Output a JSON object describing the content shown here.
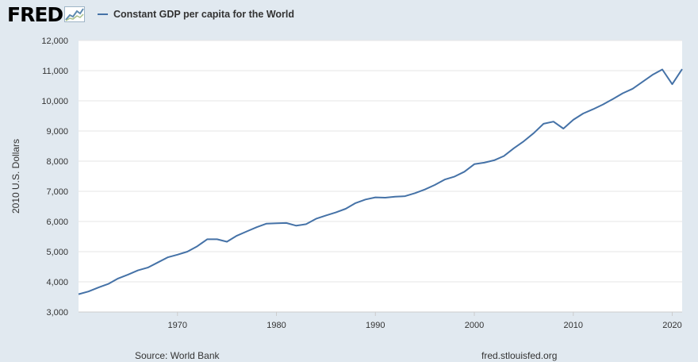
{
  "brand": {
    "logo_text": "FRED",
    "logo_icon": "trend-line-icon",
    "accent": "#4572a7"
  },
  "legend": {
    "label": "Constant GDP per capita for the World"
  },
  "footer": {
    "source": "Source: World Bank",
    "site": "fred.stlouisfed.org"
  },
  "chart_data": {
    "type": "line",
    "title": "",
    "xlabel": "",
    "ylabel": "2010 U.S. Dollars",
    "xlim": [
      1960,
      2021
    ],
    "ylim": [
      3000,
      12000
    ],
    "yticks": [
      3000,
      4000,
      5000,
      6000,
      7000,
      8000,
      9000,
      10000,
      11000,
      12000
    ],
    "ytick_labels": [
      "3,000",
      "4,000",
      "5,000",
      "6,000",
      "7,000",
      "8,000",
      "9,000",
      "10,000",
      "11,000",
      "12,000"
    ],
    "xticks": [
      1970,
      1980,
      1990,
      2000,
      2010,
      2020
    ],
    "xtick_labels": [
      "1970",
      "1980",
      "1990",
      "2000",
      "2010",
      "2020"
    ],
    "grid": true,
    "legend_position": "top",
    "series": [
      {
        "name": "Constant GDP per capita for the World",
        "color": "#4572a7",
        "x": [
          1960,
          1961,
          1962,
          1963,
          1964,
          1965,
          1966,
          1967,
          1968,
          1969,
          1970,
          1971,
          1972,
          1973,
          1974,
          1975,
          1976,
          1977,
          1978,
          1979,
          1980,
          1981,
          1982,
          1983,
          1984,
          1985,
          1986,
          1987,
          1988,
          1989,
          1990,
          1991,
          1992,
          1993,
          1994,
          1995,
          1996,
          1997,
          1998,
          1999,
          2000,
          2001,
          2002,
          2003,
          2004,
          2005,
          2006,
          2007,
          2008,
          2009,
          2010,
          2011,
          2012,
          2013,
          2014,
          2015,
          2016,
          2017,
          2018,
          2019,
          2020,
          2021
        ],
        "values": [
          3590,
          3680,
          3810,
          3930,
          4110,
          4240,
          4380,
          4470,
          4640,
          4810,
          4900,
          5000,
          5180,
          5410,
          5410,
          5330,
          5530,
          5670,
          5810,
          5930,
          5940,
          5950,
          5860,
          5910,
          6090,
          6200,
          6300,
          6420,
          6610,
          6730,
          6800,
          6790,
          6820,
          6840,
          6940,
          7060,
          7210,
          7390,
          7490,
          7650,
          7900,
          7950,
          8030,
          8170,
          8430,
          8660,
          8930,
          9240,
          9310,
          9080,
          9370,
          9580,
          9720,
          9880,
          10060,
          10250,
          10400,
          10630,
          10860,
          11040,
          10550,
          11050
        ]
      }
    ]
  }
}
